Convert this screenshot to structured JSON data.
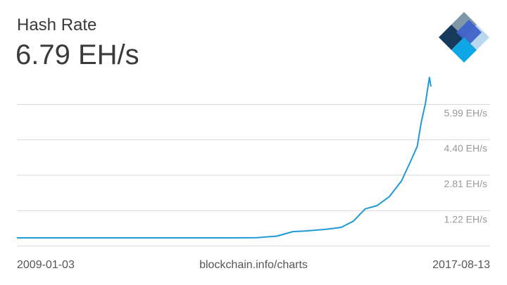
{
  "header": {
    "title": "Hash Rate",
    "current_value": "6.79 EH/s"
  },
  "footer": {
    "start_date": "2009-01-03",
    "source": "blockchain.info/charts",
    "end_date": "2017-08-13"
  },
  "logo": {
    "icon": "blockchain-diamond-logo-icon"
  },
  "colors": {
    "line": "#1e9ad6",
    "grid": "#d9d9d9",
    "tick_text": "#999999",
    "title_text": "#3a3a3a"
  },
  "chart_data": {
    "type": "line",
    "title": "Hash Rate",
    "xlabel": "",
    "ylabel": "",
    "x_range": [
      "2009-01-03",
      "2017-08-13"
    ],
    "ylim": [
      0,
      7.58
    ],
    "y_ticks": [
      1.22,
      2.81,
      4.4,
      5.99
    ],
    "y_tick_labels": [
      "1.22 EH/s",
      "2.81 EH/s",
      "4.40 EH/s",
      "5.99 EH/s"
    ],
    "grid": true,
    "series": [
      {
        "values_x": [
          "2009-01-03",
          "2010-01-01",
          "2011-01-01",
          "2012-01-01",
          "2013-01-01",
          "2013-07-01",
          "2014-01-01",
          "2014-06-01",
          "2014-10-01",
          "2015-01-01",
          "2015-06-01",
          "2015-10-01",
          "2016-01-01",
          "2016-04-01",
          "2016-07-01",
          "2016-10-01",
          "2017-01-01",
          "2017-03-01",
          "2017-05-01",
          "2017-06-01",
          "2017-07-01",
          "2017-08-01",
          "2017-08-13"
        ],
        "values_y": [
          0,
          0,
          0,
          0,
          0,
          0,
          0.01,
          0.08,
          0.28,
          0.31,
          0.38,
          0.47,
          0.75,
          1.3,
          1.45,
          1.85,
          2.55,
          3.3,
          4.1,
          5.2,
          6.0,
          7.3,
          6.79
        ]
      }
    ]
  }
}
